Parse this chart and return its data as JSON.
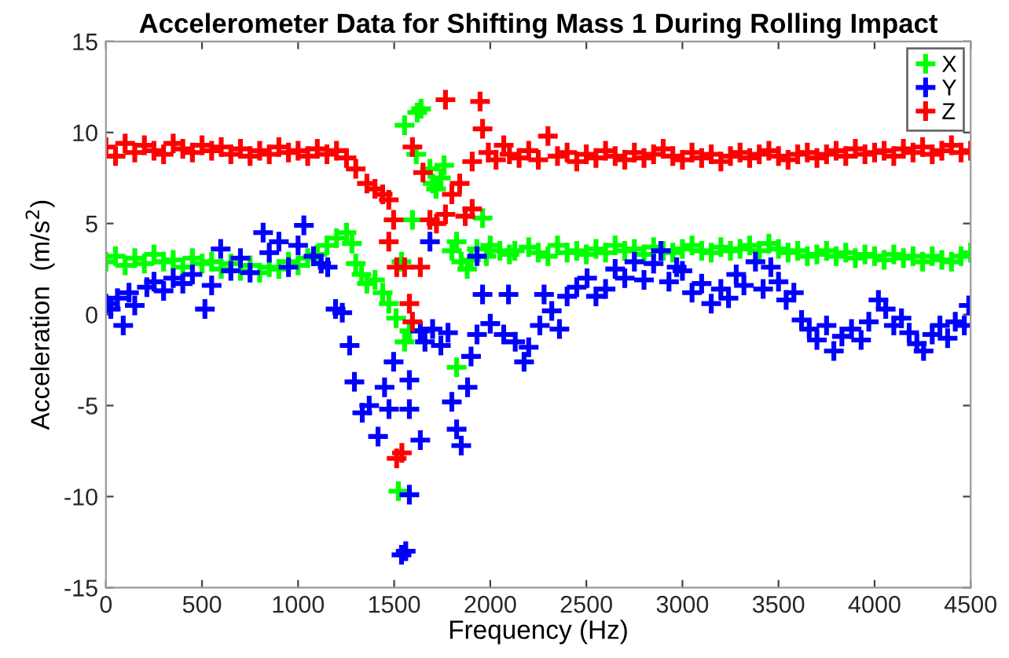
{
  "chart_data": {
    "type": "scatter",
    "title": "Accelerometer Data for Shifting Mass 1 During Rolling Impact",
    "xlabel": "Frequency (Hz)",
    "ylabel": "Acceleration  (m/s$^{2}$)",
    "xlim": [
      0,
      4500
    ],
    "xticks": [
      0,
      500,
      1000,
      1500,
      2000,
      2500,
      3000,
      3500,
      4000,
      4500
    ],
    "ylim": [
      -15,
      15
    ],
    "yticks": [
      -15,
      -10,
      -5,
      0,
      5,
      10,
      15
    ],
    "grid": false,
    "legend": "top right",
    "marker": "cross",
    "series": [
      {
        "name": "X",
        "color": "#00ff00",
        "x": [
          0,
          50,
          100,
          150,
          200,
          250,
          300,
          350,
          400,
          450,
          500,
          550,
          600,
          650,
          700,
          750,
          800,
          850,
          900,
          950,
          1000,
          1050,
          1100,
          1150,
          1200,
          1252,
          1280,
          1300,
          1330,
          1358,
          1400,
          1440,
          1472,
          1510,
          1522,
          1538,
          1554,
          1579,
          1554,
          1615,
          1595,
          1620,
          1640,
          1686,
          1700,
          1718,
          1743,
          1760,
          1800,
          1825,
          1825,
          1849,
          1880,
          1900,
          1930,
          1960,
          1980,
          2000,
          2050,
          2100,
          2128,
          2200,
          2250,
          2300,
          2350,
          2400,
          2450,
          2500,
          2550,
          2600,
          2650,
          2700,
          2750,
          2800,
          2850,
          2900,
          2950,
          3000,
          3050,
          3100,
          3150,
          3200,
          3250,
          3300,
          3350,
          3400,
          3450,
          3500,
          3550,
          3600,
          3650,
          3700,
          3750,
          3800,
          3850,
          3900,
          3950,
          4000,
          4050,
          4100,
          4150,
          4200,
          4250,
          4300,
          4350,
          4400,
          4450,
          4500
        ],
        "values": [
          2.9,
          3.2,
          2.7,
          3.1,
          2.8,
          3.3,
          2.9,
          3.0,
          2.6,
          3.1,
          2.8,
          2.9,
          2.5,
          2.8,
          2.4,
          2.7,
          2.3,
          2.6,
          2.5,
          2.9,
          2.7,
          3.1,
          3.3,
          3.8,
          4.2,
          4.5,
          3.9,
          2.8,
          2.2,
          1.7,
          1.9,
          1.2,
          0.6,
          -0.2,
          -9.7,
          2.9,
          -1.5,
          -0.9,
          10.4,
          8.8,
          5.2,
          11.1,
          11.3,
          8.0,
          7.2,
          6.9,
          7.5,
          8.2,
          3.5,
          -2.9,
          4.0,
          2.9,
          2.5,
          3.0,
          3.6,
          5.3,
          3.2,
          3.8,
          3.5,
          3.3,
          3.5,
          3.7,
          3.4,
          3.2,
          3.8,
          3.4,
          3.5,
          3.3,
          3.6,
          3.4,
          3.8,
          3.5,
          3.6,
          3.3,
          3.7,
          3.5,
          3.4,
          3.6,
          3.8,
          3.5,
          3.4,
          3.7,
          3.5,
          3.6,
          3.8,
          3.5,
          3.9,
          3.6,
          3.4,
          3.5,
          3.2,
          3.3,
          3.5,
          3.2,
          3.4,
          3.1,
          3.3,
          3.2,
          3.0,
          3.3,
          3.1,
          3.2,
          2.9,
          3.2,
          3.0,
          2.9,
          3.2,
          3.4
        ]
      },
      {
        "name": "Y",
        "color": "#0000ff",
        "x": [
          0,
          25,
          60,
          90,
          120,
          150,
          213,
          250,
          300,
          350,
          400,
          450,
          515,
          550,
          597,
          650,
          700,
          750,
          818,
          850,
          900,
          950,
          1000,
          1030,
          1080,
          1120,
          1154,
          1195,
          1230,
          1268,
          1293,
          1334,
          1370,
          1416,
          1450,
          1473,
          1497,
          1538,
          1560,
          1579,
          1579,
          1579,
          1636,
          1636,
          1660,
          1686,
          1700,
          1743,
          1780,
          1800,
          1825,
          1849,
          1882,
          1900,
          1931,
          1931,
          1960,
          2000,
          2070,
          2095,
          2130,
          2176,
          2200,
          2258,
          2280,
          2320,
          2360,
          2400,
          2450,
          2504,
          2550,
          2600,
          2650,
          2700,
          2750,
          2800,
          2850,
          2888,
          2930,
          2970,
          3000,
          3050,
          3100,
          3150,
          3200,
          3240,
          3280,
          3320,
          3380,
          3420,
          3460,
          3500,
          3540,
          3580,
          3620,
          3660,
          3700,
          3750,
          3788,
          3830,
          3880,
          3930,
          3970,
          4020,
          4058,
          4100,
          4140,
          4180,
          4220,
          4255,
          4300,
          4340,
          4380,
          4420,
          4467,
          4490
        ],
        "values": [
          0.6,
          0.3,
          0.9,
          -0.6,
          1.2,
          0.5,
          1.5,
          1.8,
          1.3,
          2.0,
          1.7,
          2.2,
          0.3,
          1.6,
          3.6,
          2.4,
          3.1,
          2.3,
          4.5,
          3.4,
          4.0,
          2.6,
          3.8,
          4.9,
          3.2,
          2.8,
          2.6,
          0.3,
          0.1,
          -1.7,
          -3.7,
          -5.4,
          -5.0,
          -6.7,
          -4.0,
          -5.2,
          -2.6,
          -13.2,
          -13.0,
          -9.9,
          -3.6,
          -5.2,
          -6.9,
          -0.9,
          -1.5,
          4.0,
          -0.8,
          -1.7,
          -1.0,
          -4.8,
          -6.3,
          -7.2,
          -4.0,
          -2.3,
          -1.1,
          3.2,
          1.1,
          -0.5,
          -1.1,
          1.1,
          -1.5,
          -2.6,
          -1.8,
          -0.6,
          1.1,
          0.2,
          -0.8,
          1.0,
          1.5,
          2.0,
          1.0,
          1.4,
          2.5,
          2.0,
          2.9,
          1.9,
          2.8,
          3.5,
          1.8,
          2.6,
          2.4,
          1.2,
          1.7,
          0.6,
          1.4,
          0.9,
          2.2,
          1.6,
          2.9,
          1.4,
          2.6,
          1.8,
          0.8,
          1.2,
          -0.3,
          -0.8,
          -1.4,
          -0.6,
          -2.0,
          -1.2,
          -0.8,
          -1.4,
          -0.4,
          0.8,
          0.3,
          -0.6,
          -0.2,
          -1.0,
          -1.6,
          -2.0,
          -1.1,
          -0.6,
          -1.3,
          -0.4,
          -0.6,
          0.5
        ]
      },
      {
        "name": "Z",
        "color": "#ff0000",
        "x": [
          0,
          50,
          100,
          150,
          200,
          250,
          300,
          350,
          400,
          450,
          500,
          550,
          600,
          650,
          700,
          750,
          800,
          850,
          900,
          950,
          1000,
          1050,
          1100,
          1150,
          1200,
          1252,
          1300,
          1358,
          1400,
          1440,
          1472,
          1497,
          1472,
          1513,
          1513,
          1540,
          1554,
          1579,
          1595,
          1595,
          1636,
          1650,
          1686,
          1720,
          1767,
          1767,
          1800,
          1841,
          1870,
          1906,
          1906,
          1947,
          1960,
          1990,
          2030,
          2070,
          2100,
          2150,
          2200,
          2250,
          2300,
          2350,
          2400,
          2450,
          2500,
          2550,
          2600,
          2650,
          2700,
          2750,
          2800,
          2850,
          2900,
          2950,
          3000,
          3050,
          3100,
          3150,
          3200,
          3250,
          3300,
          3350,
          3400,
          3450,
          3500,
          3550,
          3600,
          3650,
          3700,
          3750,
          3800,
          3850,
          3900,
          3950,
          4000,
          4050,
          4100,
          4150,
          4200,
          4250,
          4300,
          4350,
          4400,
          4450,
          4500
        ],
        "values": [
          9.2,
          8.7,
          9.4,
          8.9,
          9.3,
          9.0,
          8.8,
          9.4,
          9.1,
          8.9,
          9.3,
          9.0,
          9.2,
          8.8,
          9.1,
          8.7,
          9.0,
          8.8,
          9.2,
          8.9,
          9.0,
          8.7,
          9.1,
          8.8,
          9.0,
          8.6,
          8.0,
          7.2,
          6.9,
          6.6,
          6.3,
          5.2,
          4.0,
          2.6,
          -7.9,
          -7.6,
          2.6,
          0.6,
          -0.4,
          9.2,
          2.6,
          7.8,
          5.2,
          5.0,
          5.5,
          11.8,
          6.6,
          7.2,
          5.4,
          5.8,
          8.4,
          11.7,
          10.2,
          8.9,
          8.5,
          9.3,
          8.8,
          8.6,
          9.0,
          8.5,
          9.8,
          8.7,
          8.9,
          8.4,
          8.8,
          8.6,
          9.0,
          8.7,
          8.5,
          8.9,
          8.6,
          8.8,
          9.1,
          8.7,
          8.5,
          8.9,
          8.6,
          8.8,
          8.4,
          8.7,
          8.9,
          8.6,
          8.8,
          9.0,
          8.7,
          8.5,
          8.8,
          8.9,
          8.6,
          8.8,
          9.0,
          8.7,
          9.1,
          8.8,
          8.9,
          9.0,
          8.7,
          9.1,
          8.9,
          9.2,
          8.8,
          9.0,
          9.3,
          8.9,
          9.0
        ]
      }
    ]
  }
}
